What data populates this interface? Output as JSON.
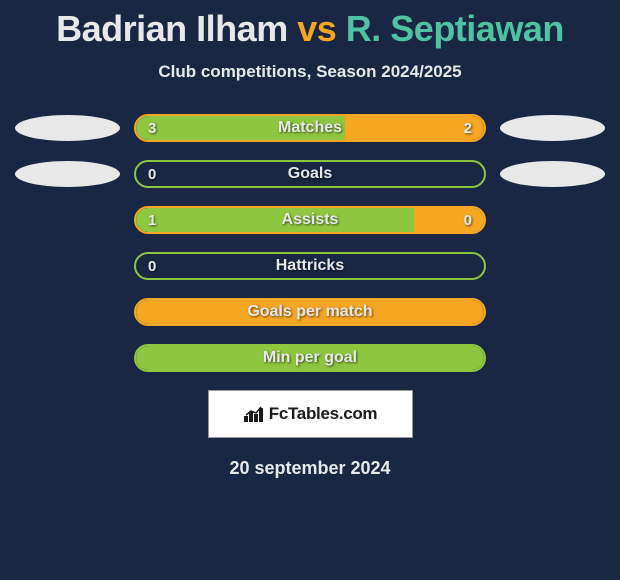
{
  "title": {
    "player1": "Badrian Ilham",
    "vs": "vs",
    "player2": "R. Septiawan"
  },
  "subtitle": "Club competitions, Season 2024/2025",
  "colors": {
    "player1_fill": "#8dc63f",
    "player2_fill": "#f5a623",
    "player1_border": "#8dc63f",
    "player2_border": "#f5a623",
    "title_p1": "#e8e8e8",
    "title_vs": "#f5a623",
    "title_p2": "#4fc3a1",
    "background": "#1a2744",
    "ellipse": "#e8e8e8"
  },
  "stats": [
    {
      "label": "Matches",
      "left_val": "3",
      "right_val": "2",
      "left_pct": 60,
      "right_pct": 40,
      "show_left_ellipse": true,
      "show_right_ellipse": true,
      "border_color": "#f5a623",
      "left_fill": "#8dc63f",
      "right_fill": "#f5a623"
    },
    {
      "label": "Goals",
      "left_val": "0",
      "right_val": "",
      "left_pct": 0,
      "right_pct": 0,
      "show_left_ellipse": true,
      "show_right_ellipse": true,
      "border_color": "#8dc63f",
      "left_fill": "",
      "right_fill": ""
    },
    {
      "label": "Assists",
      "left_val": "1",
      "right_val": "0",
      "left_pct": 100,
      "right_pct": 20,
      "show_left_ellipse": false,
      "show_right_ellipse": false,
      "border_color": "#f5a623",
      "left_fill": "#8dc63f",
      "right_fill": "#f5a623"
    },
    {
      "label": "Hattricks",
      "left_val": "0",
      "right_val": "",
      "left_pct": 0,
      "right_pct": 0,
      "show_left_ellipse": false,
      "show_right_ellipse": false,
      "border_color": "#8dc63f",
      "left_fill": "",
      "right_fill": ""
    },
    {
      "label": "Goals per match",
      "left_val": "",
      "right_val": "",
      "left_pct": 100,
      "right_pct": 0,
      "show_left_ellipse": false,
      "show_right_ellipse": false,
      "border_color": "#f5a623",
      "left_fill": "#f5a623",
      "right_fill": "",
      "full_fill": true
    },
    {
      "label": "Min per goal",
      "left_val": "",
      "right_val": "",
      "left_pct": 100,
      "right_pct": 0,
      "show_left_ellipse": false,
      "show_right_ellipse": false,
      "border_color": "#8dc63f",
      "left_fill": "#8dc63f",
      "right_fill": "",
      "full_fill": true
    }
  ],
  "logo_text": "FcTables.com",
  "date": "20 september 2024"
}
